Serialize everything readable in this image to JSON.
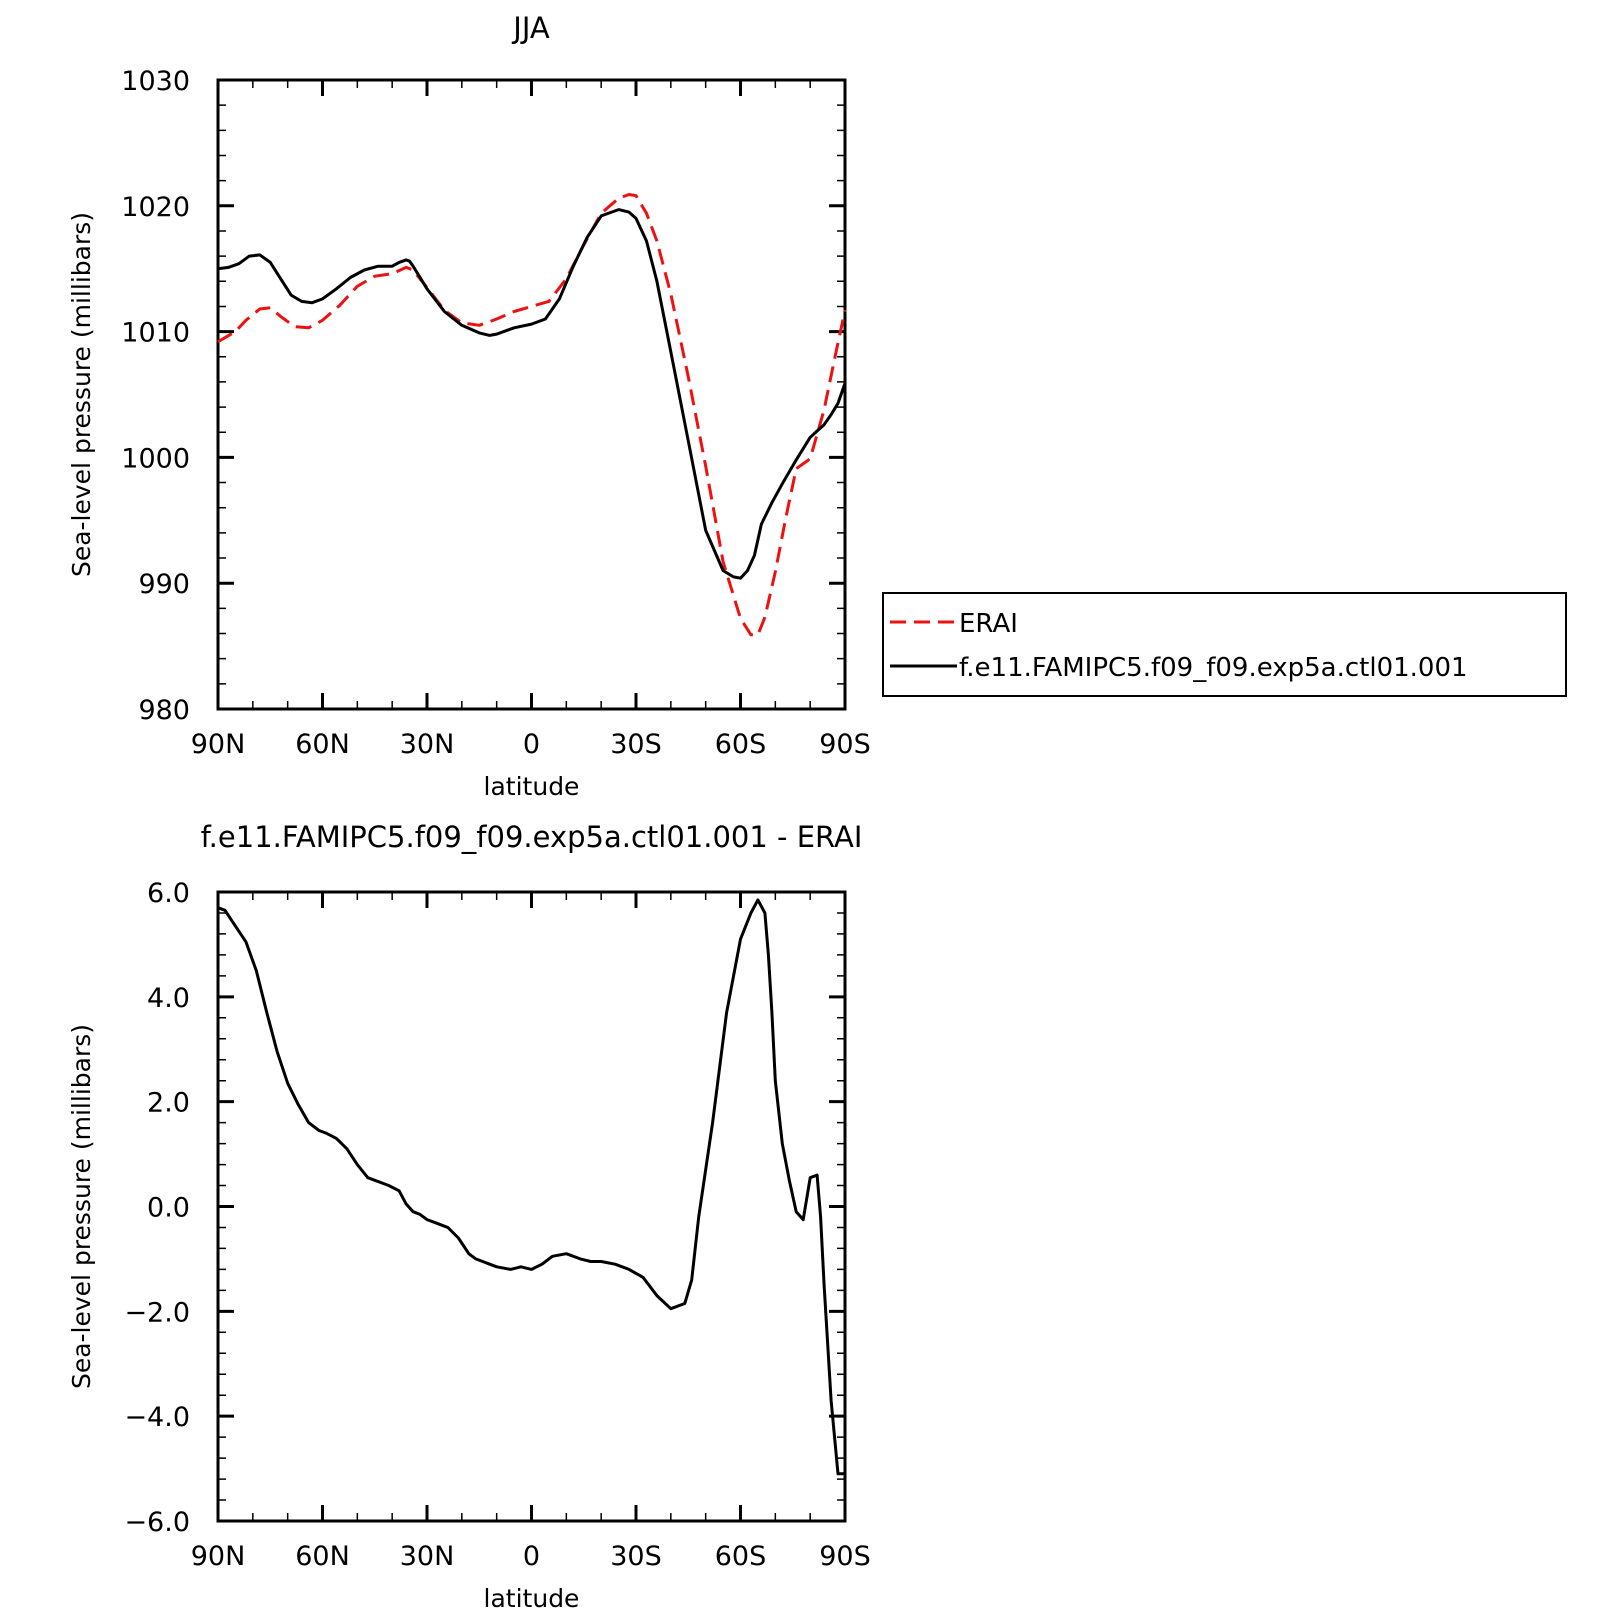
{
  "chart_data": [
    {
      "type": "line",
      "title": "JJA",
      "xlabel": "latitude",
      "ylabel": "Sea-level pressure (millibars)",
      "xlim": [
        90,
        -90
      ],
      "ylim": [
        980,
        1030
      ],
      "x_ticks": [
        90,
        60,
        30,
        0,
        -30,
        -60,
        -90
      ],
      "x_tick_labels": [
        "90N",
        "60N",
        "30N",
        "0",
        "30S",
        "60S",
        "90S"
      ],
      "y_ticks": [
        980,
        990,
        1000,
        1010,
        1020,
        1030
      ],
      "y_tick_labels": [
        "980",
        "990",
        "1000",
        "1010",
        "1020",
        "1030"
      ],
      "legend_position": "right",
      "series": [
        {
          "name": "ERAI",
          "color": "#ee1111",
          "dash": "dashed",
          "x": [
            90,
            85,
            82,
            78,
            75,
            72,
            68,
            64,
            60,
            55,
            50,
            45,
            40,
            36,
            34,
            30,
            25,
            20,
            15,
            10,
            5,
            0,
            -5,
            -10,
            -15,
            -20,
            -25,
            -28,
            -30,
            -33,
            -36,
            -40,
            -45,
            -50,
            -55,
            -60,
            -63,
            -65,
            -67,
            -70,
            -73,
            -76,
            -80,
            -84,
            -87,
            -90
          ],
          "y": [
            1009.2,
            1010.0,
            1010.9,
            1011.8,
            1011.9,
            1011.2,
            1010.4,
            1010.3,
            1010.9,
            1012.1,
            1013.6,
            1014.4,
            1014.6,
            1015.1,
            1014.9,
            1013.5,
            1011.7,
            1010.7,
            1010.5,
            1011.0,
            1011.6,
            1012.0,
            1012.4,
            1014.2,
            1016.9,
            1019.4,
            1020.6,
            1020.9,
            1020.8,
            1019.4,
            1017.2,
            1013.0,
            1006.4,
            999.3,
            991.7,
            987.2,
            985.9,
            985.9,
            987.3,
            990.9,
            995.2,
            999.1,
            999.9,
            1003.8,
            1007.8,
            1011.7
          ]
        },
        {
          "name": "f.e11.FAMIPC5.f09_f09.exp5a.ctl01.001",
          "color": "#000000",
          "dash": "solid",
          "x": [
            90,
            87,
            84,
            81,
            78,
            75,
            72,
            69,
            66,
            63,
            60,
            56,
            52,
            48,
            44,
            40,
            38,
            36,
            35,
            34,
            30,
            25,
            20,
            15,
            12,
            10,
            5,
            0,
            -4,
            -8,
            -12,
            -16,
            -20,
            -25,
            -28,
            -30,
            -33,
            -36,
            -40,
            -45,
            -50,
            -55,
            -58,
            -60,
            -62,
            -64,
            -66,
            -69,
            -72,
            -76,
            -80,
            -82,
            -84,
            -86,
            -88,
            -90
          ],
          "y": [
            1015.0,
            1015.1,
            1015.4,
            1016.0,
            1016.1,
            1015.5,
            1014.2,
            1012.9,
            1012.4,
            1012.3,
            1012.6,
            1013.4,
            1014.3,
            1014.9,
            1015.2,
            1015.2,
            1015.5,
            1015.7,
            1015.6,
            1015.2,
            1013.4,
            1011.6,
            1010.5,
            1009.9,
            1009.7,
            1009.8,
            1010.3,
            1010.6,
            1011.0,
            1012.6,
            1015.2,
            1017.5,
            1019.2,
            1019.7,
            1019.5,
            1019.0,
            1017.2,
            1014.0,
            1008.4,
            1001.3,
            994.2,
            991.0,
            990.5,
            990.4,
            991.0,
            992.2,
            994.7,
            996.4,
            997.9,
            999.8,
            1001.6,
            1002.1,
            1002.6,
            1003.4,
            1004.3,
            1005.9
          ]
        }
      ]
    },
    {
      "type": "line",
      "title": "f.e11.FAMIPC5.f09_f09.exp5a.ctl01.001 - ERAI",
      "xlabel": "latitude",
      "ylabel": "Sea-level pressure (millibars)",
      "xlim": [
        90,
        -90
      ],
      "ylim": [
        -6,
        6
      ],
      "x_ticks": [
        90,
        60,
        30,
        0,
        -30,
        -60,
        -90
      ],
      "x_tick_labels": [
        "90N",
        "60N",
        "30N",
        "0",
        "30S",
        "60S",
        "90S"
      ],
      "y_ticks": [
        -6,
        -4,
        -2,
        0,
        2,
        4,
        6
      ],
      "y_tick_labels": [
        "-6.0",
        "-4.0",
        "-2.0",
        "0.0",
        "2.0",
        "4.0",
        "6.0"
      ],
      "series": [
        {
          "color": "#000000",
          "x": [
            90,
            88,
            86,
            84,
            82,
            79,
            76,
            73,
            70,
            67,
            64,
            61,
            59,
            56,
            53,
            50,
            47,
            45,
            43,
            41,
            38,
            36,
            34,
            32,
            30,
            28,
            26,
            24,
            21,
            18,
            16,
            14,
            12,
            10,
            6,
            3,
            0,
            -3,
            -6,
            -10,
            -14,
            -17,
            -20,
            -24,
            -28,
            -32,
            -36,
            -40,
            -44,
            -46,
            -48,
            -52,
            -56,
            -60,
            -63,
            -65,
            -67,
            -68,
            -69,
            -70,
            -72,
            -74,
            -76,
            -78,
            -80,
            -82,
            -83,
            -84,
            -86,
            -88,
            -89,
            -90
          ],
          "y": [
            5.7,
            5.65,
            5.45,
            5.25,
            5.05,
            4.5,
            3.7,
            2.95,
            2.35,
            1.95,
            1.6,
            1.45,
            1.4,
            1.3,
            1.1,
            0.8,
            0.55,
            0.5,
            0.45,
            0.4,
            0.3,
            0.05,
            -0.1,
            -0.15,
            -0.25,
            -0.3,
            -0.35,
            -0.4,
            -0.6,
            -0.9,
            -1.0,
            -1.05,
            -1.1,
            -1.15,
            -1.2,
            -1.15,
            -1.2,
            -1.1,
            -0.95,
            -0.9,
            -1.0,
            -1.05,
            -1.05,
            -1.1,
            -1.2,
            -1.35,
            -1.7,
            -1.95,
            -1.85,
            -1.4,
            -0.2,
            1.6,
            3.7,
            5.1,
            5.6,
            5.85,
            5.6,
            4.8,
            3.7,
            2.4,
            1.2,
            0.5,
            -0.1,
            -0.25,
            0.55,
            0.6,
            -0.2,
            -1.5,
            -3.7,
            -5.1,
            -5.1,
            -5.1
          ]
        }
      ]
    }
  ]
}
